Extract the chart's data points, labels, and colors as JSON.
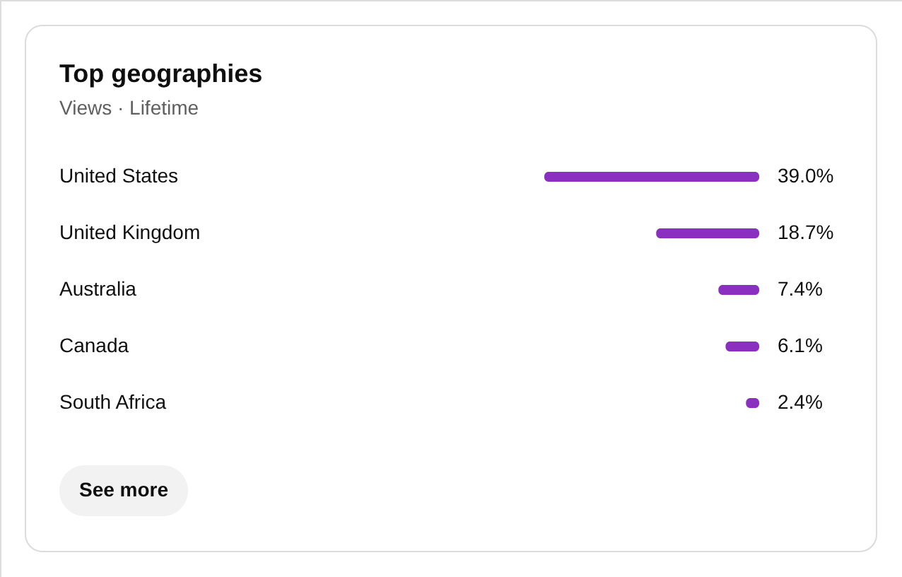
{
  "chart_data": {
    "type": "bar",
    "orientation": "horizontal",
    "title": "Top geographies",
    "subtitle": "Views · Lifetime",
    "categories": [
      "United States",
      "United Kingdom",
      "Australia",
      "Canada",
      "South Africa"
    ],
    "values": [
      39.0,
      18.7,
      7.4,
      6.1,
      2.4
    ],
    "value_labels": [
      "39.0%",
      "18.7%",
      "7.4%",
      "6.1%",
      "2.4%"
    ],
    "color": "#8b2fc1",
    "annotations": [
      "See more"
    ]
  }
}
